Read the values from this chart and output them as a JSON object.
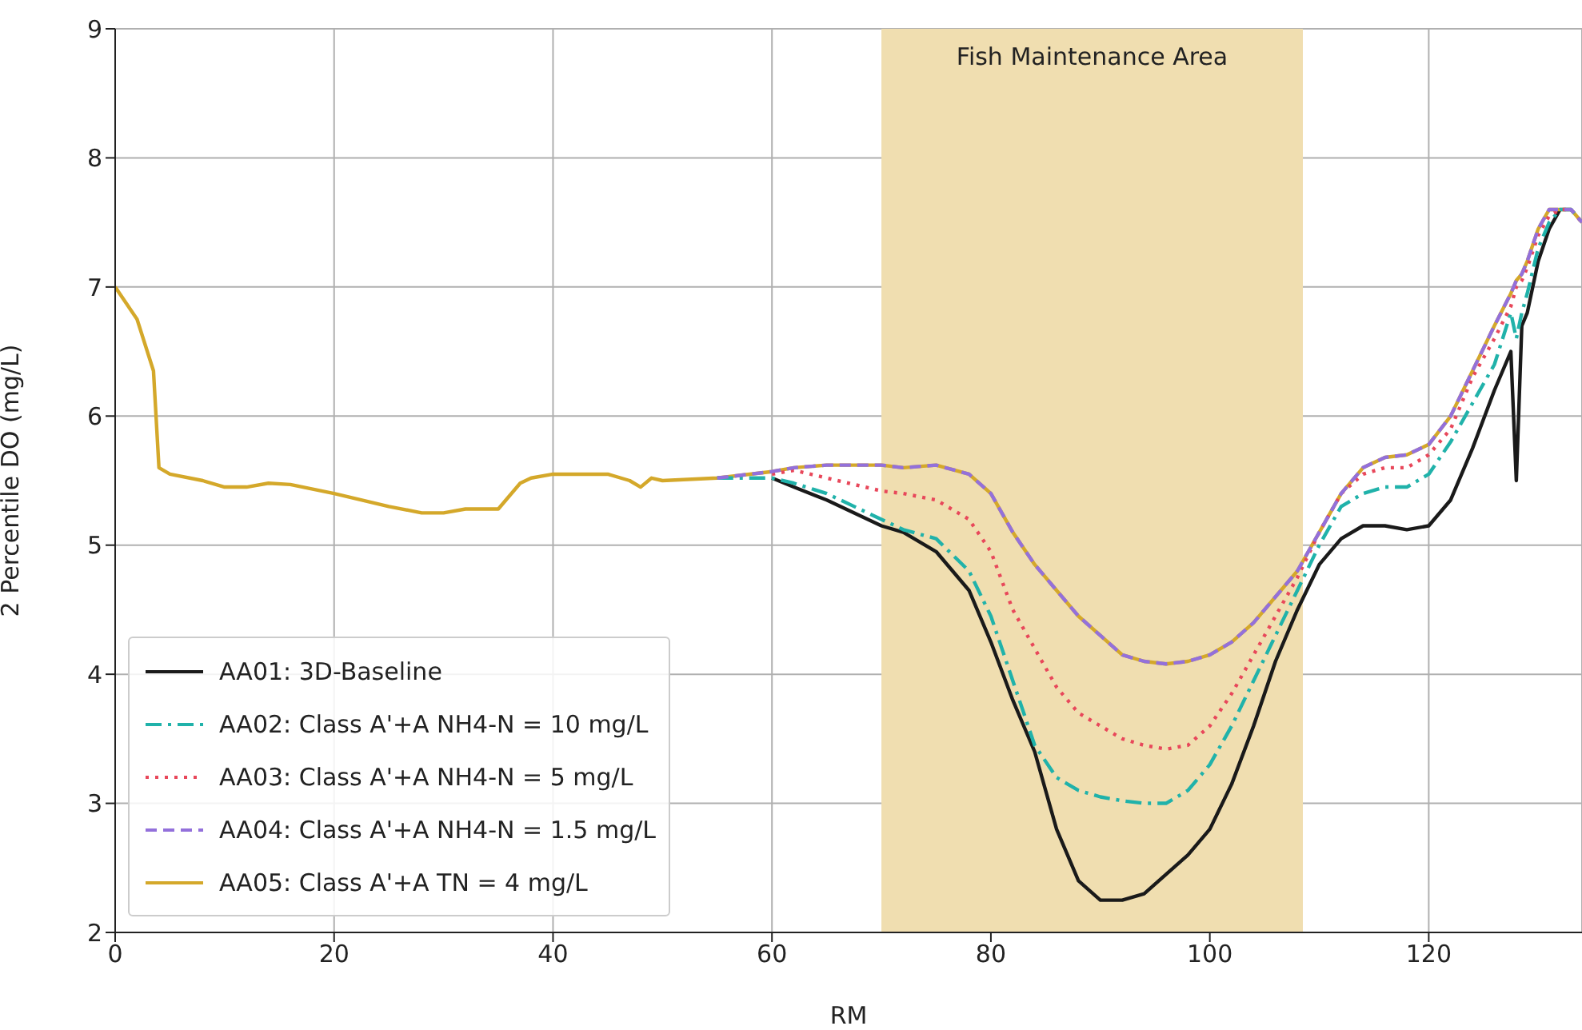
{
  "chart_data": {
    "type": "line",
    "xlabel": "RM",
    "ylabel": "2 Percentile DO (mg/L)",
    "x": [
      0,
      2,
      3.5,
      4,
      5,
      8,
      10,
      12,
      14,
      16,
      20,
      25,
      28,
      30,
      32,
      35,
      37,
      38,
      40,
      45,
      47,
      48,
      49,
      50,
      55,
      60,
      62,
      65,
      70,
      72,
      75,
      78,
      80,
      82,
      84,
      86,
      88,
      90,
      92,
      94,
      96,
      98,
      100,
      102,
      104,
      106,
      108,
      110,
      112,
      114,
      116,
      118,
      120,
      122,
      124,
      126,
      127.5,
      128,
      128.5,
      129,
      130,
      131,
      132,
      133,
      134
    ],
    "xlim": [
      0,
      134
    ],
    "xticks": [
      0,
      20,
      40,
      60,
      80,
      100,
      120
    ],
    "ylim": [
      2,
      9
    ],
    "yticks": [
      2,
      3,
      4,
      5,
      6,
      7,
      8,
      9
    ],
    "grid": true,
    "legend": "bottom left",
    "marker": "none",
    "bands": [
      {
        "axis": "x",
        "from": 70,
        "to": 108.5,
        "label": "Fish Maintenance Area",
        "color": "#f0deb0"
      }
    ],
    "series": [
      {
        "name": "AA01: 3D-Baseline",
        "color": "#1a1a1a",
        "line_style": "solid",
        "values": [
          null,
          null,
          null,
          null,
          null,
          null,
          null,
          null,
          null,
          null,
          null,
          null,
          null,
          null,
          null,
          null,
          null,
          null,
          null,
          null,
          null,
          null,
          null,
          null,
          null,
          5.52,
          5.45,
          5.35,
          5.15,
          5.1,
          4.95,
          4.65,
          4.25,
          3.8,
          3.4,
          2.8,
          2.4,
          2.25,
          2.25,
          2.3,
          2.45,
          2.6,
          2.8,
          3.15,
          3.6,
          4.1,
          4.5,
          4.85,
          5.05,
          5.15,
          5.15,
          5.12,
          5.15,
          5.35,
          5.75,
          6.2,
          6.5,
          5.5,
          6.7,
          6.8,
          7.2,
          7.45,
          7.6,
          null,
          null
        ]
      },
      {
        "name": "AA02: Class A'+A NH4-N = 10 mg/L",
        "color": "#20b2aa",
        "line_style": "dashdot",
        "values": [
          null,
          null,
          null,
          null,
          null,
          null,
          null,
          null,
          null,
          null,
          null,
          null,
          null,
          null,
          null,
          null,
          null,
          null,
          null,
          null,
          null,
          null,
          null,
          null,
          5.52,
          5.52,
          5.48,
          5.4,
          5.2,
          5.12,
          5.05,
          4.8,
          4.45,
          3.95,
          3.45,
          3.2,
          3.1,
          3.05,
          3.02,
          3.0,
          3.0,
          3.1,
          3.3,
          3.6,
          3.95,
          4.3,
          4.65,
          5.0,
          5.3,
          5.4,
          5.45,
          5.45,
          5.55,
          5.8,
          6.1,
          6.4,
          6.8,
          6.6,
          6.8,
          6.95,
          7.3,
          7.5,
          7.6,
          7.6,
          7.5
        ]
      },
      {
        "name": "AA03: Class A'+A NH4-N = 5 mg/L",
        "color": "#e8475a",
        "line_style": "dotted",
        "values": [
          null,
          null,
          null,
          null,
          null,
          null,
          null,
          null,
          null,
          null,
          null,
          null,
          null,
          null,
          null,
          null,
          null,
          null,
          null,
          null,
          null,
          null,
          null,
          null,
          null,
          5.55,
          5.58,
          5.52,
          5.42,
          5.4,
          5.35,
          5.2,
          4.95,
          4.5,
          4.2,
          3.9,
          3.7,
          3.6,
          3.5,
          3.45,
          3.42,
          3.45,
          3.6,
          3.85,
          4.15,
          4.45,
          4.75,
          5.1,
          5.4,
          5.55,
          5.6,
          5.6,
          5.7,
          5.9,
          6.3,
          6.6,
          6.85,
          7.0,
          7.05,
          7.15,
          7.4,
          7.55,
          7.6,
          7.6,
          7.5
        ]
      },
      {
        "name": "AA04: Class A'+A NH4-N = 1.5 mg/L",
        "color": "#9370db",
        "line_style": "dashed",
        "values": [
          null,
          null,
          null,
          null,
          null,
          null,
          null,
          null,
          null,
          null,
          null,
          null,
          null,
          null,
          null,
          null,
          null,
          null,
          null,
          null,
          null,
          null,
          null,
          null,
          5.52,
          5.57,
          5.6,
          5.62,
          5.62,
          5.6,
          5.62,
          5.55,
          5.4,
          5.1,
          4.85,
          4.65,
          4.45,
          4.3,
          4.15,
          4.1,
          4.08,
          4.1,
          4.15,
          4.25,
          4.4,
          4.6,
          4.8,
          5.1,
          5.4,
          5.6,
          5.68,
          5.7,
          5.78,
          6.0,
          6.35,
          6.7,
          6.95,
          7.05,
          7.1,
          7.2,
          7.45,
          7.6,
          7.6,
          7.6,
          7.5
        ]
      },
      {
        "name": "AA05: Class A'+A TN = 4 mg/L",
        "color": "#d4a82a",
        "line_style": "solid",
        "values": [
          7.0,
          6.75,
          6.35,
          5.6,
          5.55,
          5.5,
          5.45,
          5.45,
          5.48,
          5.47,
          5.4,
          5.3,
          5.25,
          5.25,
          5.28,
          5.28,
          5.48,
          5.52,
          5.55,
          5.55,
          5.5,
          5.45,
          5.52,
          5.5,
          5.52,
          5.57,
          5.6,
          5.62,
          5.62,
          5.6,
          5.62,
          5.55,
          5.4,
          5.1,
          4.85,
          4.65,
          4.45,
          4.3,
          4.15,
          4.1,
          4.08,
          4.1,
          4.15,
          4.25,
          4.4,
          4.6,
          4.8,
          5.1,
          5.4,
          5.6,
          5.68,
          5.7,
          5.78,
          6.0,
          6.35,
          6.7,
          6.95,
          7.05,
          7.1,
          7.2,
          7.45,
          7.6,
          7.6,
          7.6,
          7.5
        ]
      }
    ]
  }
}
